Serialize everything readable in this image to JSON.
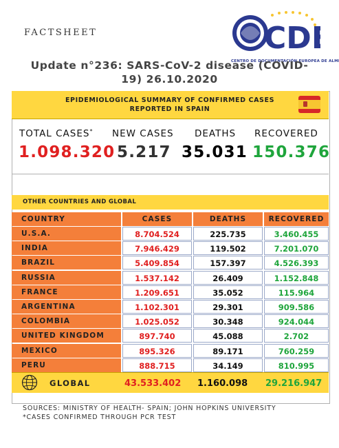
{
  "header": {
    "factsheet": "FACTSHEET",
    "logo_text": "CDE",
    "logo_caption": "CENTRO DE DOCUMENTACIÓN EUROPEA DE ALMERÍA",
    "headline_line1": "Update n°236: SARS-CoV-2 disease (COVID-",
    "headline_line2": "19) 26.10.2020"
  },
  "spain": {
    "title_line1": "EPIDEMIOLOGICAL SUMMARY OF CONFIRMED CASES",
    "title_line2": "REPORTED IN SPAIN",
    "stats": [
      {
        "label": "TOTAL CASES",
        "marker": "*",
        "value": "1.098.320",
        "color": "#e02020"
      },
      {
        "label": "NEW CASES",
        "value": "5.217",
        "color": "#333333"
      },
      {
        "label": "DEATHS",
        "value": "35.031",
        "color": "#000000"
      },
      {
        "label": "RECOVERED",
        "value": "150.376",
        "color": "#1fa53c"
      }
    ]
  },
  "other": {
    "label": "OTHER COUNTRIES AND GLOBAL",
    "columns": [
      "COUNTRY",
      "CASES",
      "DEATHS",
      "RECOVERED"
    ],
    "rows": [
      {
        "country": "U.S.A.",
        "cases": "8.704.524",
        "deaths": "225.735",
        "recovered": "3.460.455"
      },
      {
        "country": "INDIA",
        "cases": "7.946.429",
        "deaths": "119.502",
        "recovered": "7.201.070"
      },
      {
        "country": "BRAZIL",
        "cases": "5.409.854",
        "deaths": "157.397",
        "recovered": "4.526.393"
      },
      {
        "country": "RUSSIA",
        "cases": "1.537.142",
        "deaths": "26.409",
        "recovered": "1.152.848"
      },
      {
        "country": "FRANCE",
        "cases": "1.209.651",
        "deaths": "35.052",
        "recovered": "115.964"
      },
      {
        "country": "ARGENTINA",
        "cases": "1.102.301",
        "deaths": "29.301",
        "recovered": "909.586"
      },
      {
        "country": "COLOMBIA",
        "cases": "1.025.052",
        "deaths": "30.348",
        "recovered": "924.044"
      },
      {
        "country": "UNITED KINGDOM",
        "cases": "897.740",
        "deaths": "45.088",
        "recovered": "2.702"
      },
      {
        "country": "MEXICO",
        "cases": "895.326",
        "deaths": "89.171",
        "recovered": "760.259"
      },
      {
        "country": "PERU",
        "cases": "888.715",
        "deaths": "34.149",
        "recovered": "810.995"
      }
    ],
    "global": {
      "label": "GLOBAL",
      "cases": "43.533.402",
      "deaths": "1.160.098",
      "recovered": "29.216.947"
    }
  },
  "footer": {
    "sources": "SOURCES: MINISTRY OF HEALTH- SPAIN; JOHN HOPKINS UNIVERSITY",
    "note": "*CASES CONFIRMED THROUGH PCR TEST"
  },
  "colors": {
    "yellow": "#ffd740",
    "orange": "#f47f3a",
    "red": "#e02020",
    "green": "#1fa53c",
    "logo_blue": "#2b3990"
  }
}
